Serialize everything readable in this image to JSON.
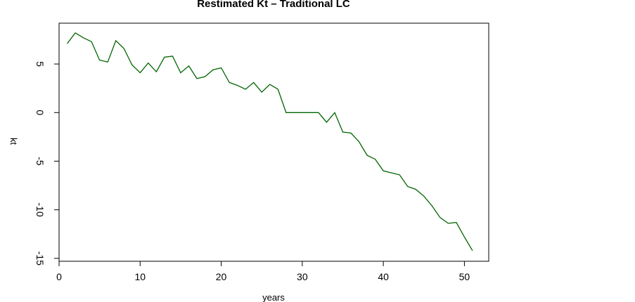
{
  "chart_data": {
    "type": "line",
    "title": "Restimated Kt – Traditional LC",
    "xlabel": "years",
    "ylabel": "kt",
    "xlim": [
      0,
      53
    ],
    "ylim": [
      -15.3,
      9.2
    ],
    "xticks": [
      0,
      10,
      20,
      30,
      40,
      50
    ],
    "yticks": [
      5,
      0,
      -5,
      -10,
      -15
    ],
    "grid": false,
    "series": [
      {
        "color": "#006400",
        "x": [
          1,
          2,
          3,
          4,
          5,
          6,
          7,
          8,
          9,
          10,
          11,
          12,
          13,
          14,
          15,
          16,
          17,
          18,
          19,
          20,
          21,
          22,
          23,
          24,
          25,
          26,
          27,
          28,
          29,
          30,
          31,
          32,
          33,
          34,
          35,
          36,
          37,
          38,
          39,
          40,
          41,
          42,
          43,
          44,
          45,
          46,
          47,
          48,
          49,
          50,
          51
        ],
        "y": [
          7.1,
          8.2,
          7.7,
          7.3,
          5.4,
          5.2,
          7.4,
          6.6,
          4.9,
          4.1,
          5.1,
          4.2,
          5.7,
          5.8,
          4.1,
          4.8,
          3.5,
          3.7,
          4.4,
          4.6,
          3.1,
          2.8,
          2.4,
          3.1,
          2.1,
          2.9,
          2.4,
          0.0,
          0.0,
          0.0,
          0.0,
          0.0,
          -1.0,
          0.0,
          -2.0,
          -2.1,
          -3.0,
          -4.4,
          -4.8,
          -6.0,
          -6.2,
          -6.4,
          -7.6,
          -7.9,
          -8.6,
          -9.6,
          -10.8,
          -11.4,
          -11.3,
          -12.8,
          -14.2
        ]
      }
    ]
  }
}
